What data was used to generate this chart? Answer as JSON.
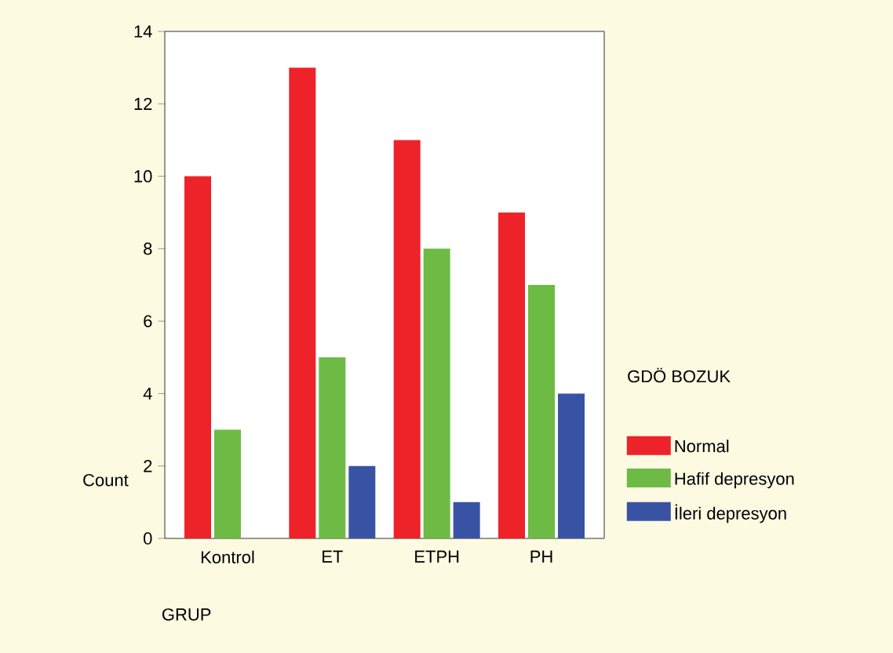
{
  "chart_data": {
    "type": "bar",
    "categories": [
      "Kontrol",
      "ET",
      "ETPH",
      "PH"
    ],
    "series": [
      {
        "name": "Normal",
        "color": "#ee2229",
        "values": [
          10,
          13,
          11,
          9
        ]
      },
      {
        "name": "Hafif depresyon",
        "color": "#6dbb45",
        "values": [
          3,
          5,
          8,
          7
        ]
      },
      {
        "name": "İleri depresyon",
        "color": "#3953a4",
        "values": [
          0,
          2,
          1,
          4
        ]
      }
    ],
    "xlabel": "GRUP",
    "ylabel": "Count",
    "legend_title": "GDÖ BOZUK",
    "legend": "right",
    "ylim": [
      0,
      14
    ],
    "yticks": [
      0,
      2,
      4,
      6,
      8,
      10,
      12,
      14
    ],
    "grid": false
  }
}
